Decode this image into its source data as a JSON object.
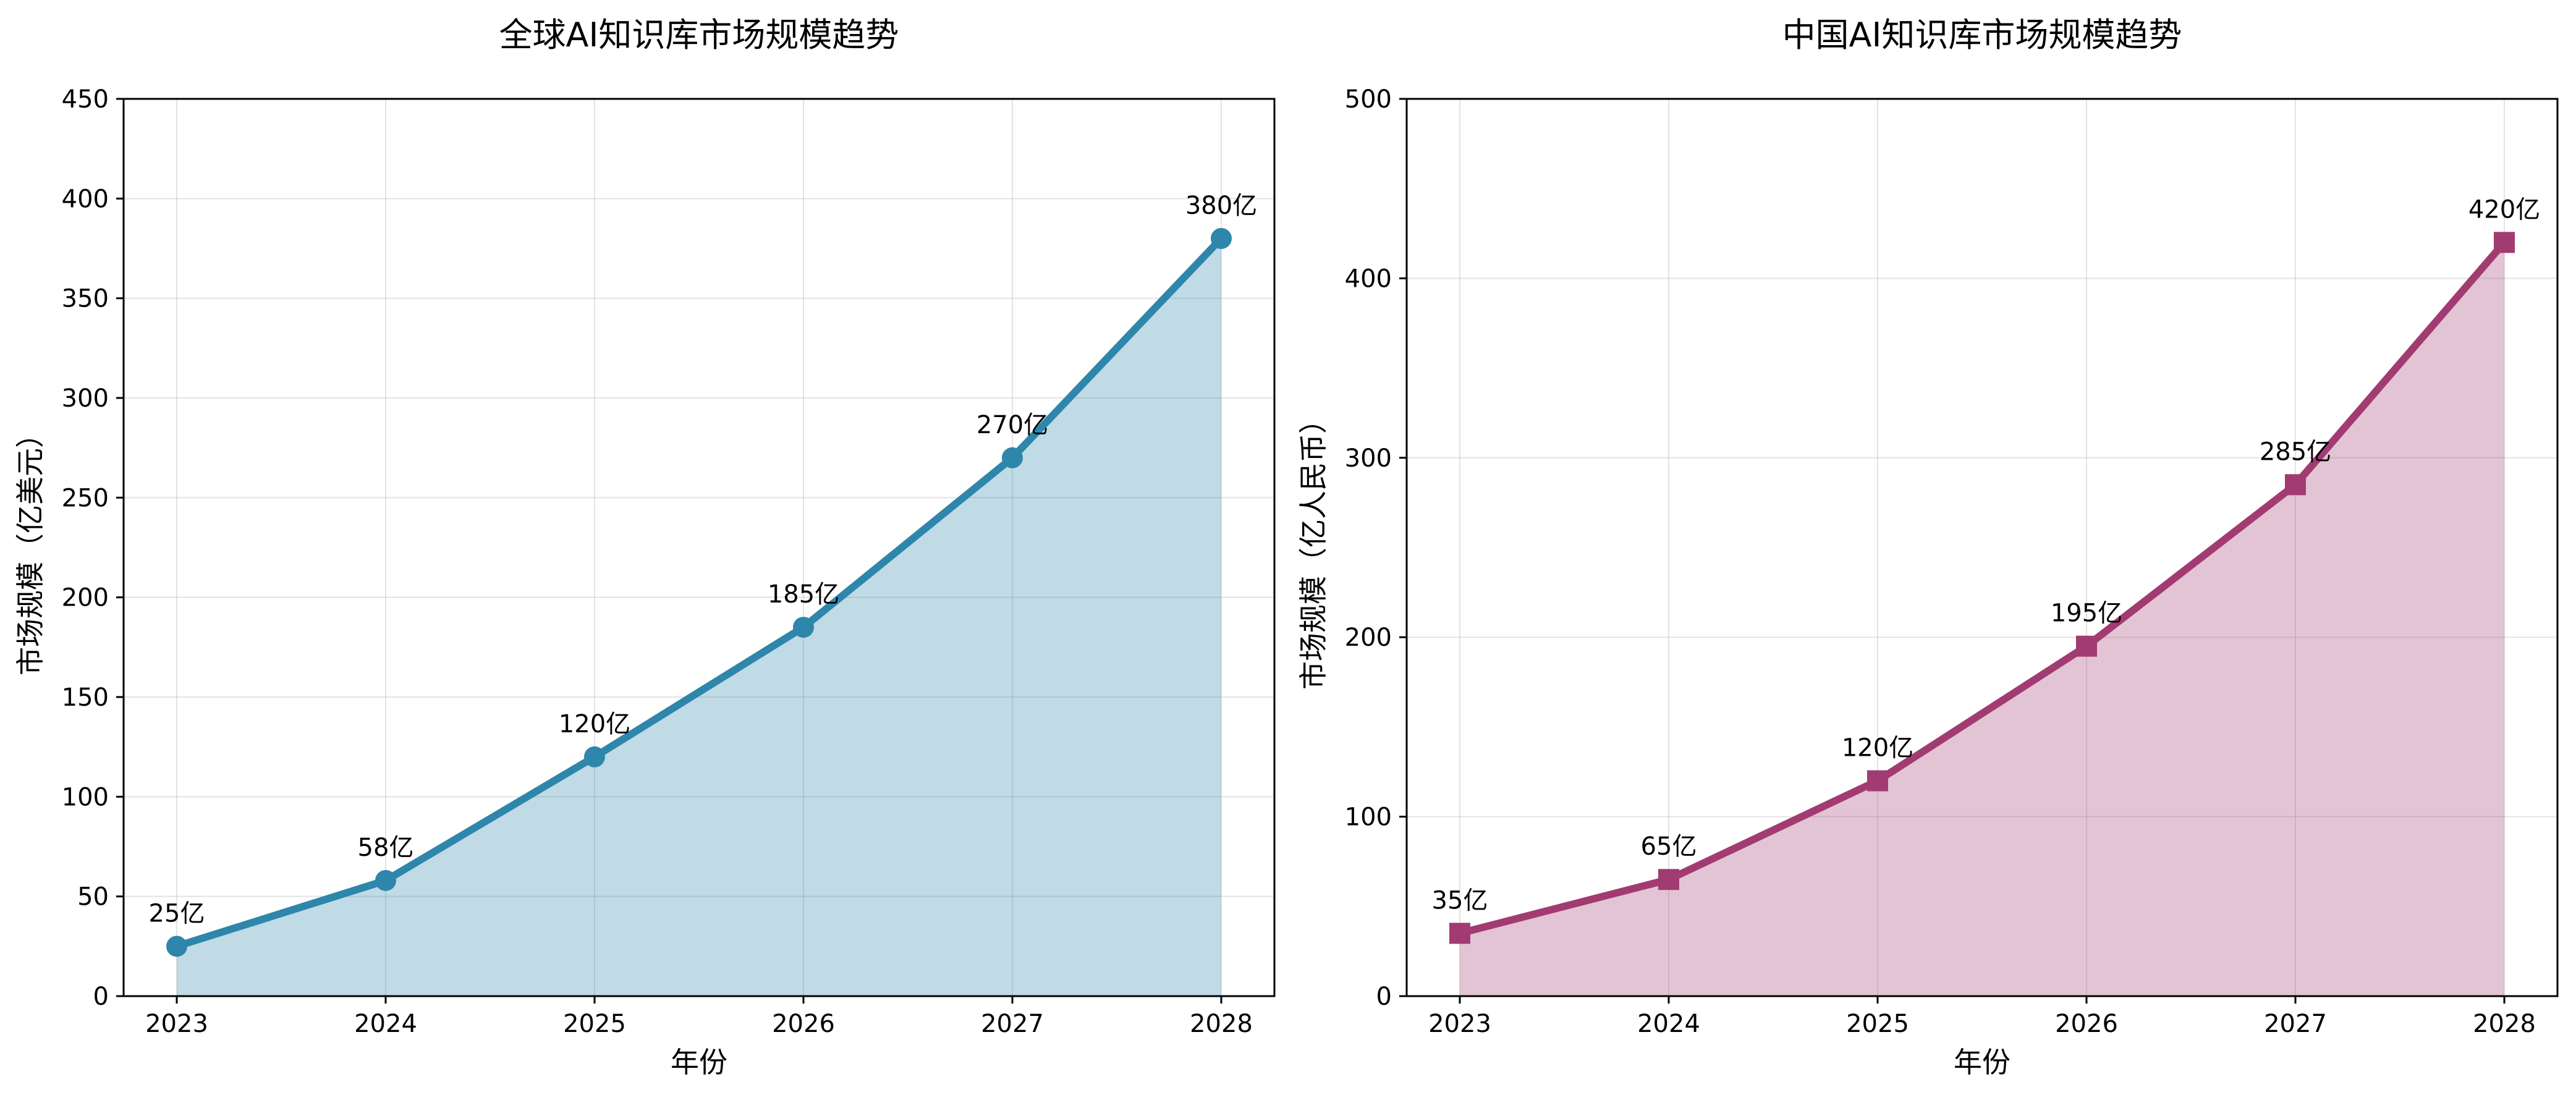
{
  "chart_data": [
    {
      "type": "area",
      "title": "全球AI知识库市场规模趋势",
      "xlabel": "年份",
      "ylabel": "市场规模（亿美元）",
      "categories": [
        "2023",
        "2024",
        "2025",
        "2026",
        "2027",
        "2028"
      ],
      "series": [
        {
          "values": [
            25,
            58,
            120,
            185,
            270,
            380
          ],
          "color": "#2e86ab",
          "marker": "circle"
        }
      ],
      "data_labels": [
        "25亿",
        "58亿",
        "120亿",
        "185亿",
        "270亿",
        "380亿"
      ],
      "ylim": [
        0,
        450
      ],
      "yticks": [
        0,
        50,
        100,
        150,
        200,
        250,
        300,
        350,
        400,
        450
      ],
      "grid": true
    },
    {
      "type": "area",
      "title": "中国AI知识库市场规模趋势",
      "xlabel": "年份",
      "ylabel": "市场规模（亿人民币）",
      "categories": [
        "2023",
        "2024",
        "2025",
        "2026",
        "2027",
        "2028"
      ],
      "series": [
        {
          "values": [
            35,
            65,
            120,
            195,
            285,
            420
          ],
          "color": "#a23b72",
          "marker": "square"
        }
      ],
      "data_labels": [
        "35亿",
        "65亿",
        "120亿",
        "195亿",
        "285亿",
        "420亿"
      ],
      "ylim": [
        0,
        500
      ],
      "yticks": [
        0,
        100,
        200,
        300,
        400,
        500
      ],
      "grid": true
    }
  ]
}
